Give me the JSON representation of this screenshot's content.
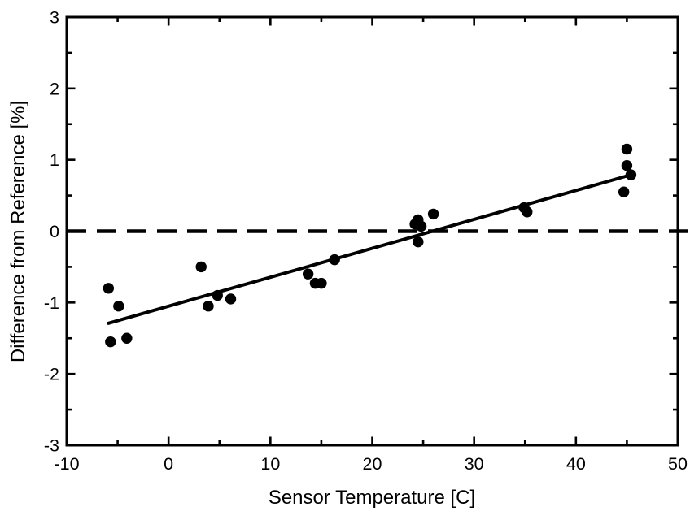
{
  "chart_data": {
    "type": "scatter",
    "title": "",
    "xlabel": "Sensor Temperature [C]",
    "ylabel": "Difference from Reference [%]",
    "xlim": [
      -10,
      50
    ],
    "ylim": [
      -3,
      3
    ],
    "grid": false,
    "legend": "none",
    "x_major_ticks": [
      -10,
      0,
      10,
      20,
      30,
      40,
      50
    ],
    "x_tick_labels": [
      "-10",
      "0",
      "10",
      "20",
      "30",
      "40",
      "50"
    ],
    "x_minor_ticks": [
      -5,
      5,
      15,
      25,
      35,
      45
    ],
    "y_major_ticks": [
      -3,
      -2,
      -1,
      0,
      1,
      2,
      3
    ],
    "y_tick_labels": [
      "-3",
      "-2",
      "-1",
      "0",
      "1",
      "2",
      "3"
    ],
    "y_minor_ticks": [
      -2.5,
      -1.5,
      -0.5,
      0.5,
      1.5,
      2.5
    ],
    "points": [
      [
        -5.9,
        -0.8
      ],
      [
        -5.7,
        -1.55
      ],
      [
        -4.9,
        -1.05
      ],
      [
        -4.1,
        -1.5
      ],
      [
        3.2,
        -0.5
      ],
      [
        3.9,
        -1.05
      ],
      [
        4.8,
        -0.9
      ],
      [
        6.1,
        -0.95
      ],
      [
        13.7,
        -0.6
      ],
      [
        14.4,
        -0.73
      ],
      [
        15.0,
        -0.73
      ],
      [
        16.3,
        -0.4
      ],
      [
        24.2,
        0.1
      ],
      [
        24.5,
        0.16
      ],
      [
        24.8,
        0.07
      ],
      [
        24.5,
        -0.15
      ],
      [
        26.0,
        0.24
      ],
      [
        34.9,
        0.33
      ],
      [
        35.2,
        0.27
      ],
      [
        44.7,
        0.55
      ],
      [
        45.0,
        0.92
      ],
      [
        45.0,
        1.15
      ],
      [
        45.4,
        0.79
      ]
    ],
    "fit_line": {
      "x1": -5.9,
      "y1": -1.29,
      "x2": 45.4,
      "y2": 0.79
    },
    "zero_line": {
      "y": 0,
      "style": "dashed",
      "x_start": -10,
      "x_end": 51.0
    },
    "colors": {
      "background": "#ffffff",
      "axis": "#000000",
      "marker": "#000000",
      "fit_line": "#000000",
      "zero_line": "#000000"
    }
  }
}
